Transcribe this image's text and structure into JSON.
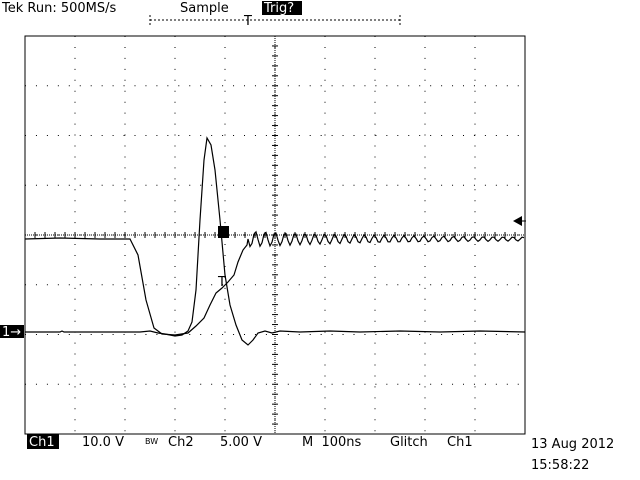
{
  "header": {
    "status": "Tek Run: 500MS/s",
    "mode": "Sample",
    "trigger_state": "Trig?"
  },
  "markers": {
    "trigger_position": "T",
    "ch1_ground": "1→",
    "trigger_level": "T"
  },
  "footer": {
    "ch1_label": "Ch1",
    "ch1_scale": "10.0 V",
    "bandwidth": "BW",
    "ch2_label": "Ch2",
    "ch2_scale": "5.00 V",
    "timebase": "M  100ns",
    "trigger_type": "Glitch",
    "trigger_source": "Ch1",
    "date": "13 Aug 2012",
    "time": "15:58:22"
  }
}
